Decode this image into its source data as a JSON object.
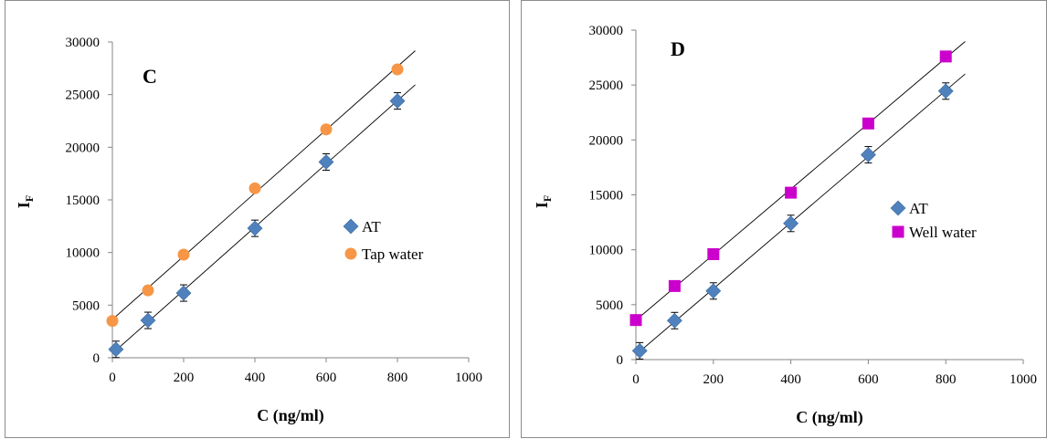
{
  "chart_data": [
    {
      "type": "scatter",
      "panel_label": "C",
      "xlabel": "C (ng/ml)",
      "ylabel_main": "I",
      "ylabel_sub": "F",
      "xlim": [
        0,
        1000
      ],
      "ylim": [
        0,
        30000
      ],
      "xticks": [
        0,
        200,
        400,
        600,
        800,
        1000
      ],
      "yticks": [
        0,
        5000,
        10000,
        15000,
        20000,
        25000,
        30000
      ],
      "legend_position": "right",
      "series": [
        {
          "name": "AT",
          "marker": "diamond",
          "color": "#4F81BD",
          "x": [
            10,
            100,
            200,
            400,
            600,
            800
          ],
          "y": [
            800,
            3550,
            6150,
            12300,
            18600,
            24400
          ],
          "error_bars": true,
          "trendline": {
            "x_range": [
              0,
              850
            ]
          }
        },
        {
          "name": "Tap water",
          "marker": "circle",
          "color": "#F79646",
          "x": [
            0,
            100,
            200,
            400,
            600,
            800
          ],
          "y": [
            3500,
            6400,
            9800,
            16100,
            21700,
            27400
          ],
          "error_bars": false,
          "trendline": {
            "x_range": [
              0,
              850
            ]
          }
        }
      ]
    },
    {
      "type": "scatter",
      "panel_label": "D",
      "xlabel": "C (ng/ml)",
      "ylabel_main": "I",
      "ylabel_sub": "F",
      "xlim": [
        0,
        1000
      ],
      "ylim": [
        0,
        30000
      ],
      "xticks": [
        0,
        200,
        400,
        600,
        800,
        1000
      ],
      "yticks": [
        0,
        5000,
        10000,
        15000,
        20000,
        25000,
        30000
      ],
      "legend_position": "right",
      "series": [
        {
          "name": "AT",
          "marker": "diamond",
          "color": "#4F81BD",
          "x": [
            10,
            100,
            200,
            400,
            600,
            800
          ],
          "y": [
            800,
            3550,
            6250,
            12400,
            18650,
            24450
          ],
          "error_bars": true,
          "trendline": {
            "x_range": [
              0,
              850
            ]
          }
        },
        {
          "name": "Well water",
          "marker": "square",
          "color": "#CC00CC",
          "x": [
            0,
            100,
            200,
            400,
            600,
            800
          ],
          "y": [
            3600,
            6700,
            9600,
            15200,
            21500,
            27600
          ],
          "error_bars": false,
          "trendline": {
            "x_range": [
              0,
              850
            ]
          }
        }
      ]
    }
  ]
}
